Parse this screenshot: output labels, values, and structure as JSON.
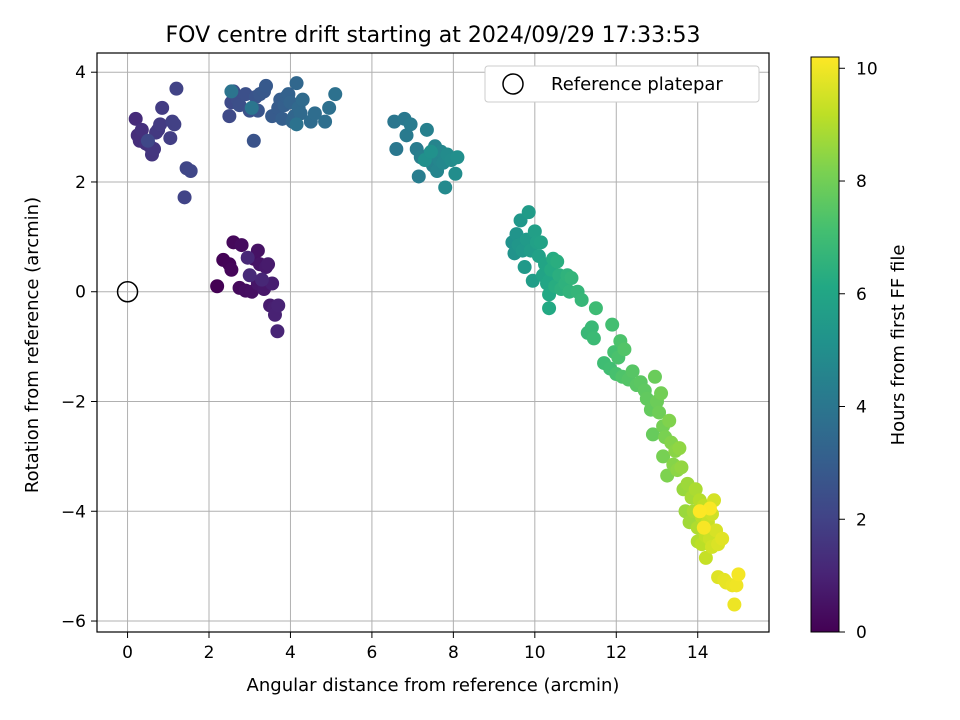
{
  "chart_data": {
    "type": "scatter",
    "title": "FOV centre drift starting at 2024/09/29 17:33:53",
    "xlabel": "Angular distance from reference (arcmin)",
    "ylabel": "Rotation from reference (arcmin)",
    "xlim": [
      -0.75,
      15.75
    ],
    "ylim": [
      -6.2,
      4.35
    ],
    "xticks": [
      0,
      2,
      4,
      6,
      8,
      10,
      12,
      14
    ],
    "yticks": [
      -6,
      -4,
      -2,
      0,
      2,
      4
    ],
    "grid": true,
    "legend": {
      "position": "top-right",
      "entries": [
        "Reference platepar"
      ]
    },
    "reference_point": {
      "x": 0,
      "y": 0,
      "label": "Reference platepar"
    },
    "colorbar": {
      "label": "Hours from first FF file",
      "colormap": "viridis",
      "range": [
        0,
        10.2
      ],
      "ticks": [
        0,
        2,
        4,
        6,
        8,
        10
      ]
    },
    "series": [
      {
        "points": [
          [
            2.2,
            0.1
          ],
          [
            2.35,
            0.58
          ],
          [
            2.5,
            0.5
          ],
          [
            2.55,
            0.4
          ],
          [
            2.6,
            0.9
          ],
          [
            2.75,
            0.07
          ],
          [
            2.8,
            0.85
          ],
          [
            2.9,
            0.02
          ],
          [
            3.05,
            0.0
          ],
          [
            3.1,
            0.6
          ],
          [
            3.2,
            0.75
          ],
          [
            3.25,
            0.5
          ],
          [
            3.2,
            0.15
          ],
          [
            3.35,
            0.05
          ],
          [
            3.4,
            0.45
          ],
          [
            3.45,
            0.5
          ],
          [
            3.5,
            -0.25
          ],
          [
            3.55,
            0.15
          ],
          [
            3.6,
            -0.3
          ],
          [
            3.62,
            -0.42
          ],
          [
            3.7,
            -0.25
          ],
          [
            3.68,
            -0.72
          ],
          [
            3.3,
            0.22
          ],
          [
            2.95,
            0.62
          ],
          [
            3.0,
            0.3
          ],
          [
            0.2,
            3.15
          ],
          [
            0.25,
            2.85
          ],
          [
            0.3,
            2.75
          ],
          [
            0.35,
            2.95
          ],
          [
            0.45,
            2.7
          ],
          [
            0.55,
            2.65
          ],
          [
            0.6,
            2.5
          ],
          [
            0.65,
            2.6
          ],
          [
            0.7,
            2.9
          ],
          [
            0.75,
            2.95
          ],
          [
            0.8,
            3.05
          ],
          [
            0.85,
            3.35
          ],
          [
            1.05,
            2.8
          ],
          [
            1.1,
            3.1
          ],
          [
            1.15,
            3.05
          ],
          [
            1.2,
            3.7
          ],
          [
            1.4,
            1.72
          ],
          [
            1.45,
            2.25
          ],
          [
            1.55,
            2.2
          ],
          [
            0.5,
            2.75
          ],
          [
            2.5,
            3.2
          ],
          [
            2.55,
            3.45
          ],
          [
            2.6,
            3.65
          ],
          [
            2.7,
            3.5
          ],
          [
            2.75,
            3.4
          ],
          [
            2.9,
            3.6
          ],
          [
            3.0,
            3.3
          ],
          [
            3.1,
            2.75
          ],
          [
            3.15,
            3.55
          ],
          [
            3.2,
            3.3
          ],
          [
            3.25,
            3.6
          ],
          [
            3.35,
            3.65
          ],
          [
            3.4,
            3.75
          ],
          [
            3.55,
            3.2
          ],
          [
            3.7,
            3.35
          ],
          [
            3.75,
            3.5
          ],
          [
            3.8,
            3.15
          ],
          [
            3.85,
            3.4
          ],
          [
            3.9,
            3.55
          ],
          [
            3.95,
            3.6
          ],
          [
            4.0,
            3.45
          ],
          [
            4.05,
            3.1
          ],
          [
            4.1,
            3.2
          ],
          [
            4.15,
            3.8
          ],
          [
            4.2,
            3.35
          ],
          [
            4.25,
            3.25
          ],
          [
            4.3,
            3.5
          ],
          [
            4.5,
            3.1
          ],
          [
            4.6,
            3.25
          ],
          [
            4.85,
            3.1
          ],
          [
            4.95,
            3.35
          ],
          [
            5.1,
            3.6
          ],
          [
            4.15,
            3.05
          ],
          [
            2.55,
            3.65
          ],
          [
            3.05,
            3.35
          ],
          [
            6.55,
            3.1
          ],
          [
            6.6,
            2.6
          ],
          [
            6.8,
            3.15
          ],
          [
            6.85,
            2.85
          ],
          [
            6.95,
            3.05
          ],
          [
            7.1,
            2.6
          ],
          [
            7.15,
            2.1
          ],
          [
            7.2,
            2.45
          ],
          [
            7.35,
            2.95
          ],
          [
            7.4,
            2.5
          ],
          [
            7.5,
            2.3
          ],
          [
            7.55,
            2.65
          ],
          [
            7.6,
            2.2
          ],
          [
            7.65,
            2.4
          ],
          [
            7.7,
            2.55
          ],
          [
            7.75,
            2.35
          ],
          [
            7.8,
            1.9
          ],
          [
            7.85,
            2.5
          ],
          [
            7.95,
            2.4
          ],
          [
            8.05,
            2.15
          ],
          [
            8.1,
            2.45
          ],
          [
            7.3,
            2.4
          ],
          [
            7.45,
            2.55
          ],
          [
            9.45,
            0.9
          ],
          [
            9.5,
            0.7
          ],
          [
            9.55,
            1.05
          ],
          [
            9.6,
            0.85
          ],
          [
            9.65,
            1.3
          ],
          [
            9.7,
            0.75
          ],
          [
            9.75,
            0.45
          ],
          [
            9.8,
            0.95
          ],
          [
            9.85,
            1.45
          ],
          [
            9.9,
            0.75
          ],
          [
            9.95,
            0.2
          ],
          [
            10.0,
            1.1
          ],
          [
            10.05,
            0.9
          ],
          [
            10.1,
            0.65
          ],
          [
            10.15,
            0.9
          ],
          [
            10.2,
            0.3
          ],
          [
            10.25,
            0.5
          ],
          [
            10.3,
            0.15
          ],
          [
            10.35,
            0.2
          ],
          [
            10.35,
            -0.05
          ],
          [
            10.35,
            -0.3
          ],
          [
            10.4,
            0.4
          ],
          [
            10.45,
            0.6
          ],
          [
            10.5,
            0.1
          ],
          [
            10.55,
            0.55
          ],
          [
            10.6,
            0.3
          ],
          [
            10.65,
            0.05
          ],
          [
            10.75,
            0.15
          ],
          [
            10.8,
            0.3
          ],
          [
            10.85,
            0.0
          ],
          [
            10.9,
            0.25
          ],
          [
            11.05,
            0.0
          ],
          [
            11.15,
            -0.15
          ],
          [
            11.3,
            -0.75
          ],
          [
            11.4,
            -0.65
          ],
          [
            11.45,
            -0.85
          ],
          [
            11.5,
            -0.3
          ],
          [
            11.7,
            -1.3
          ],
          [
            11.85,
            -1.4
          ],
          [
            11.9,
            -0.6
          ],
          [
            11.95,
            -1.1
          ],
          [
            12.0,
            -1.5
          ],
          [
            12.05,
            -1.2
          ],
          [
            12.1,
            -0.9
          ],
          [
            12.15,
            -1.55
          ],
          [
            12.2,
            -1.05
          ],
          [
            12.3,
            -1.6
          ],
          [
            12.4,
            -1.45
          ],
          [
            12.5,
            -1.7
          ],
          [
            12.6,
            -1.65
          ],
          [
            12.7,
            -1.8
          ],
          [
            12.75,
            -1.95
          ],
          [
            12.85,
            -2.15
          ],
          [
            12.9,
            -2.6
          ],
          [
            12.95,
            -1.55
          ],
          [
            13.0,
            -2.0
          ],
          [
            13.05,
            -2.2
          ],
          [
            13.1,
            -1.85
          ],
          [
            13.15,
            -2.45
          ],
          [
            13.15,
            -3.0
          ],
          [
            13.2,
            -2.65
          ],
          [
            13.25,
            -3.35
          ],
          [
            13.3,
            -2.35
          ],
          [
            13.35,
            -2.75
          ],
          [
            13.4,
            -3.15
          ],
          [
            13.45,
            -2.9
          ],
          [
            13.5,
            -3.25
          ],
          [
            13.55,
            -2.85
          ],
          [
            13.6,
            -3.2
          ],
          [
            13.65,
            -3.6
          ]
        ]
      },
      {
        "points": [
          [
            13.7,
            -4.0
          ],
          [
            13.75,
            -3.5
          ],
          [
            13.8,
            -4.2
          ],
          [
            13.85,
            -3.75
          ],
          [
            13.9,
            -4.0
          ],
          [
            13.95,
            -3.6
          ],
          [
            14.0,
            -4.3
          ],
          [
            14.0,
            -4.55
          ],
          [
            14.05,
            -3.8
          ],
          [
            14.1,
            -4.1
          ],
          [
            14.1,
            -4.6
          ],
          [
            14.15,
            -3.9
          ],
          [
            14.2,
            -4.45
          ],
          [
            14.2,
            -4.85
          ],
          [
            14.25,
            -4.2
          ],
          [
            14.3,
            -4.5
          ],
          [
            14.35,
            -4.05
          ],
          [
            14.35,
            -4.65
          ],
          [
            14.4,
            -3.8
          ],
          [
            14.45,
            -4.35
          ],
          [
            14.5,
            -4.6
          ],
          [
            14.5,
            -5.2
          ],
          [
            14.6,
            -4.5
          ],
          [
            14.65,
            -5.25
          ],
          [
            14.7,
            -5.3
          ],
          [
            14.85,
            -5.35
          ],
          [
            14.9,
            -5.7
          ],
          [
            14.95,
            -5.35
          ],
          [
            15.0,
            -5.15
          ],
          [
            14.15,
            -4.3
          ],
          [
            14.3,
            -3.95
          ],
          [
            14.05,
            -4.0
          ]
        ]
      }
    ]
  }
}
